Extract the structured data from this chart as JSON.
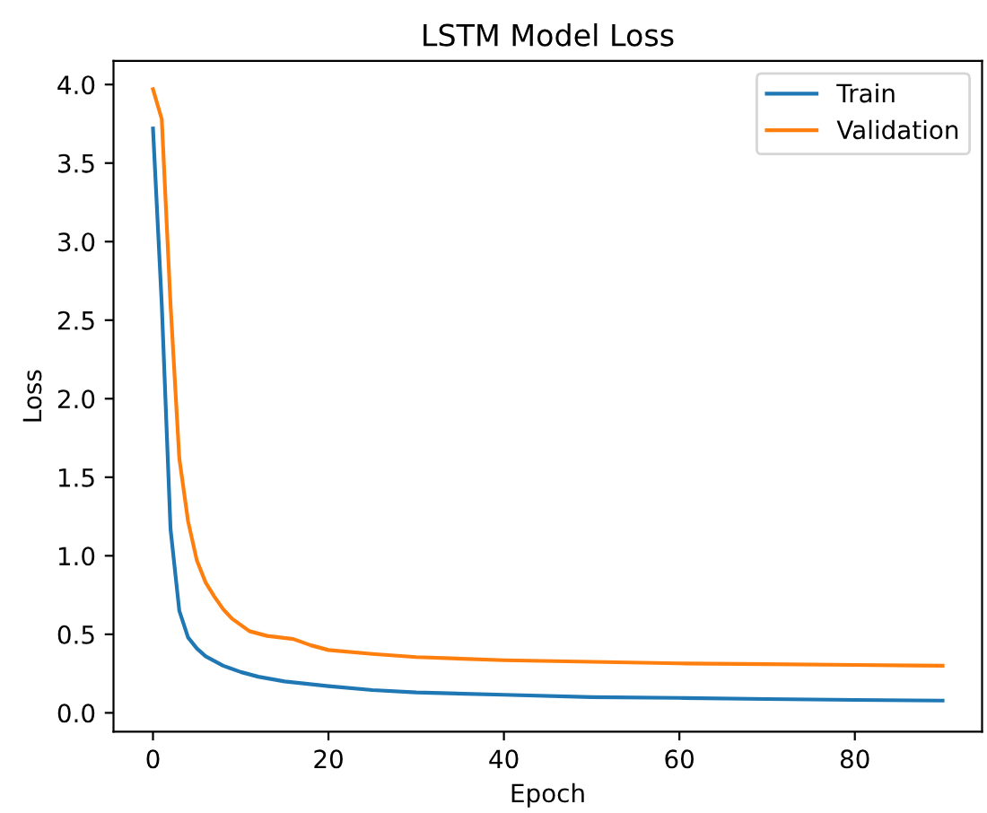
{
  "chart_data": {
    "type": "line",
    "title": "LSTM Model Loss",
    "xlabel": "Epoch",
    "ylabel": "Loss",
    "xlim": [
      -4.5,
      94.5
    ],
    "xticks": [
      0,
      20,
      40,
      60,
      80
    ],
    "ylim": [
      -0.12,
      4.15
    ],
    "yticks": [
      {
        "value": 0,
        "label": "0.0"
      },
      0.5,
      {
        "value": 1,
        "label": "1.0"
      },
      1.5,
      {
        "value": 2,
        "label": "2.0"
      },
      2.5,
      {
        "value": 3,
        "label": "3.0"
      },
      3.5,
      {
        "value": 4,
        "label": "4.0"
      }
    ],
    "legend": "top right",
    "grid": false,
    "series": [
      {
        "name": "Train",
        "color": "#1f77b4",
        "x": [
          0,
          1,
          2,
          3,
          4,
          5,
          6,
          7,
          8,
          10,
          12,
          15,
          20,
          25,
          30,
          40,
          50,
          60,
          70,
          80,
          90
        ],
        "values": [
          3.72,
          2.6,
          1.17,
          0.65,
          0.48,
          0.41,
          0.36,
          0.33,
          0.3,
          0.26,
          0.23,
          0.2,
          0.17,
          0.145,
          0.13,
          0.115,
          0.1,
          0.095,
          0.088,
          0.082,
          0.078
        ]
      },
      {
        "name": "Validation",
        "color": "#ff7f0e",
        "x": [
          0,
          1,
          2,
          3,
          4,
          5,
          6,
          7,
          8,
          9,
          10,
          11,
          13,
          16,
          18,
          20,
          25,
          30,
          40,
          50,
          60,
          70,
          80,
          90
        ],
        "values": [
          3.97,
          3.78,
          2.6,
          1.62,
          1.22,
          0.97,
          0.83,
          0.74,
          0.66,
          0.6,
          0.56,
          0.52,
          0.49,
          0.47,
          0.43,
          0.4,
          0.375,
          0.355,
          0.335,
          0.325,
          0.315,
          0.31,
          0.305,
          0.3
        ]
      }
    ]
  }
}
